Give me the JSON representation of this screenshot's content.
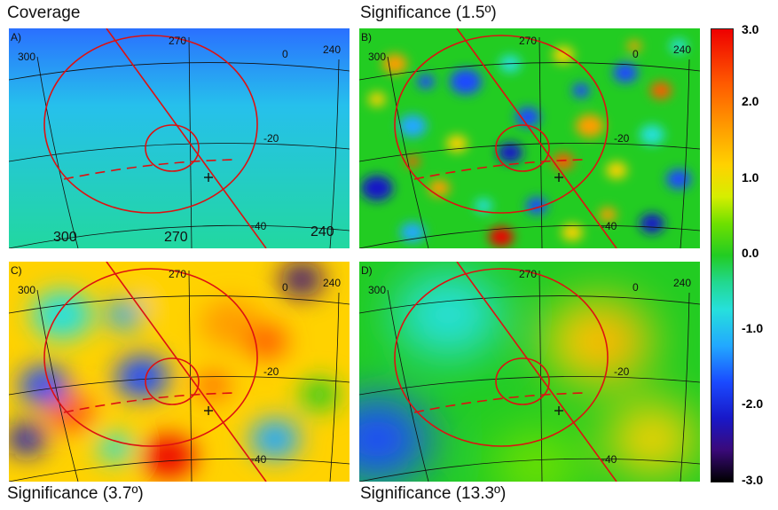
{
  "titles": {
    "a": "Coverage",
    "b": "Significance (1.5º)",
    "c": "Significance (3.7º)",
    "d": "Significance (13.3º)"
  },
  "panels": [
    {
      "id": "A",
      "label": "A)",
      "title_key": "a"
    },
    {
      "id": "B",
      "label": "B)",
      "title_key": "b"
    },
    {
      "id": "C",
      "label": "C)",
      "title_key": "c"
    },
    {
      "id": "D",
      "label": "D)",
      "title_key": "d"
    }
  ],
  "grid_labels": {
    "ra_300": "300",
    "ra_270": "270",
    "ra_240": "240",
    "dec_0": "0",
    "dec_m20": "-20",
    "dec_m40": "-40"
  },
  "colorbar": {
    "ticks": [
      "3.0",
      "2.0",
      "1.0",
      "0.0",
      "-1.0",
      "-2.0",
      "-3.0"
    ],
    "colors": [
      "#ee0000",
      "#ff9e00",
      "#d6ee00",
      "#22cc22",
      "#26e0dc",
      "#1a4aff",
      "#000000"
    ]
  },
  "chart_data": {
    "type": "heatmap",
    "panels": [
      {
        "title": "Coverage",
        "label": "A)"
      },
      {
        "title": "Significance (1.5º)",
        "label": "B)"
      },
      {
        "title": "Significance (3.7º)",
        "label": "C)"
      },
      {
        "title": "Significance (13.3º)",
        "label": "D)"
      }
    ],
    "colorbar_range": [
      -3.0,
      3.0
    ],
    "colorbar_ticks": [
      3.0,
      2.0,
      1.0,
      0.0,
      -1.0,
      -2.0,
      -3.0
    ],
    "ra_grid": [
      300,
      270,
      240
    ],
    "dec_grid": [
      0,
      -20,
      -40
    ]
  }
}
